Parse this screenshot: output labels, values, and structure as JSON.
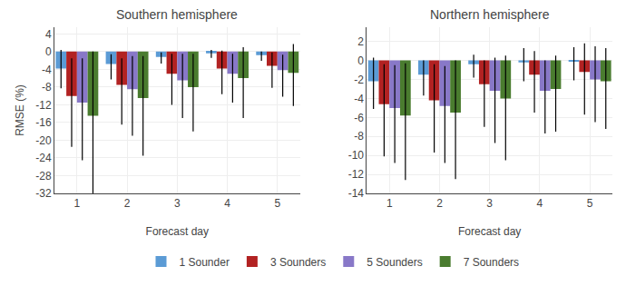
{
  "chart_data": [
    {
      "type": "bar",
      "title": "Southern hemisphere",
      "xlabel": "Forecast day",
      "ylabel": "RMSE (%)",
      "x": [
        1,
        2,
        3,
        4,
        5
      ],
      "xlim": [
        0.55,
        5.45
      ],
      "xticks": [
        1,
        2,
        3,
        4,
        5
      ],
      "ylim": [
        -32,
        5.5
      ],
      "yticks": [
        4,
        0,
        -4,
        -8,
        -12,
        -16,
        -20,
        -24,
        -28,
        -32
      ],
      "grid": true,
      "legend": "bottom",
      "series": [
        {
          "name": "1 Sounder",
          "color": "#5b9bd5",
          "values": [
            -3.8,
            -2.8,
            -1.2,
            -0.4,
            -0.8
          ],
          "err_low": [
            4.5,
            3.5,
            1.5,
            1.0,
            1.3
          ],
          "err_high": [
            4.2,
            2.2,
            1.0,
            0.8,
            0.8
          ]
        },
        {
          "name": "3 Sounders",
          "color": "#b22222",
          "values": [
            -10.0,
            -7.5,
            -5.0,
            -3.8,
            -3.2
          ],
          "err_low": [
            11.5,
            9.0,
            7.0,
            5.8,
            5.0
          ],
          "err_high": [
            8.5,
            6.0,
            4.5,
            4.0,
            3.0
          ]
        },
        {
          "name": "5 Sounders",
          "color": "#8878c8",
          "values": [
            -11.5,
            -8.5,
            -6.5,
            -5.0,
            -4.2
          ],
          "err_low": [
            13.0,
            10.5,
            8.5,
            6.5,
            6.0
          ],
          "err_high": [
            10.0,
            7.5,
            6.0,
            4.5,
            3.5
          ]
        },
        {
          "name": "7 Sounders",
          "color": "#4a7c2f",
          "values": [
            -14.5,
            -10.5,
            -8.0,
            -6.0,
            -4.8
          ],
          "err_low": [
            17.5,
            13.0,
            10.0,
            9.0,
            7.5
          ],
          "err_high": [
            14.5,
            9.5,
            7.5,
            7.0,
            6.5
          ]
        }
      ]
    },
    {
      "type": "bar",
      "title": "Northern hemisphere",
      "xlabel": "Forecast day",
      "x": [
        1,
        2,
        3,
        4,
        5
      ],
      "xlim": [
        0.55,
        5.45
      ],
      "xticks": [
        1,
        2,
        3,
        4,
        5
      ],
      "ylim": [
        -14,
        3.5
      ],
      "yticks": [
        2,
        0,
        -2,
        -4,
        -6,
        -8,
        -10,
        -12,
        -14
      ],
      "grid": true,
      "series": [
        {
          "name": "1 Sounder",
          "color": "#5b9bd5",
          "values": [
            -2.2,
            -1.5,
            -0.4,
            -0.2,
            -0.1
          ],
          "err_low": [
            2.9,
            2.2,
            1.4,
            2.0,
            2.0
          ],
          "err_high": [
            2.5,
            1.5,
            1.0,
            1.5,
            1.5
          ]
        },
        {
          "name": "3 Sounders",
          "color": "#b22222",
          "values": [
            -4.6,
            -4.2,
            -2.5,
            -1.5,
            -1.2
          ],
          "err_low": [
            5.5,
            5.5,
            4.5,
            4.0,
            4.5
          ],
          "err_high": [
            4.2,
            3.8,
            2.5,
            2.5,
            3.0
          ]
        },
        {
          "name": "5 Sounders",
          "color": "#8878c8",
          "values": [
            -5.0,
            -4.8,
            -3.2,
            -3.2,
            -2.0
          ],
          "err_low": [
            5.8,
            6.0,
            5.5,
            4.5,
            4.5
          ],
          "err_high": [
            4.5,
            4.2,
            3.5,
            3.2,
            3.5
          ]
        },
        {
          "name": "7 Sounders",
          "color": "#4a7c2f",
          "values": [
            -5.8,
            -5.5,
            -4.0,
            -3.0,
            -2.2
          ],
          "err_low": [
            6.8,
            7.0,
            6.5,
            4.5,
            5.0
          ],
          "err_high": [
            5.5,
            5.5,
            4.5,
            3.5,
            3.5
          ]
        }
      ]
    }
  ]
}
